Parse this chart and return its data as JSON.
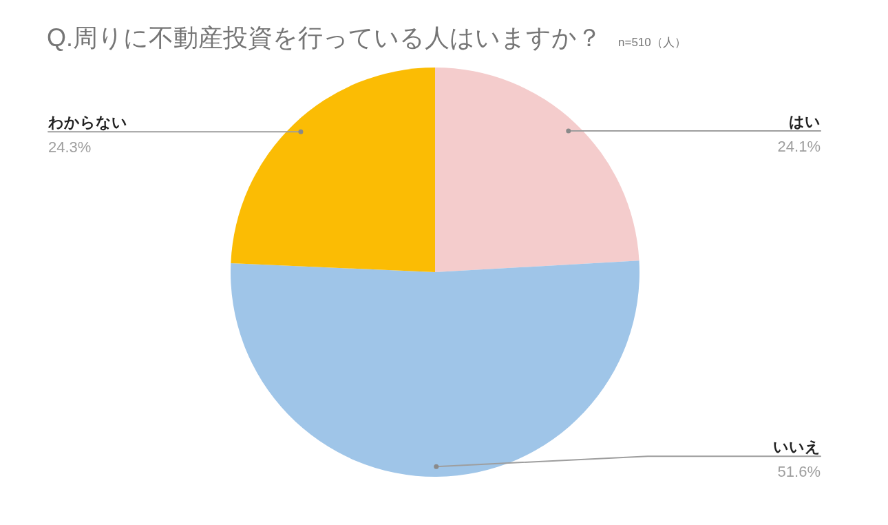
{
  "chart_data": {
    "type": "pie",
    "title": "Q.周りに不動産投資を行っている人はいますか？",
    "subtitle": "n=510（人）",
    "categories": [
      "はい",
      "いいえ",
      "わからない"
    ],
    "values": [
      24.1,
      51.6,
      24.3
    ],
    "colors": [
      "#f4cccc",
      "#9fc5e8",
      "#fbbc04"
    ],
    "value_labels": [
      "24.1%",
      "51.6%",
      "24.3%"
    ]
  }
}
